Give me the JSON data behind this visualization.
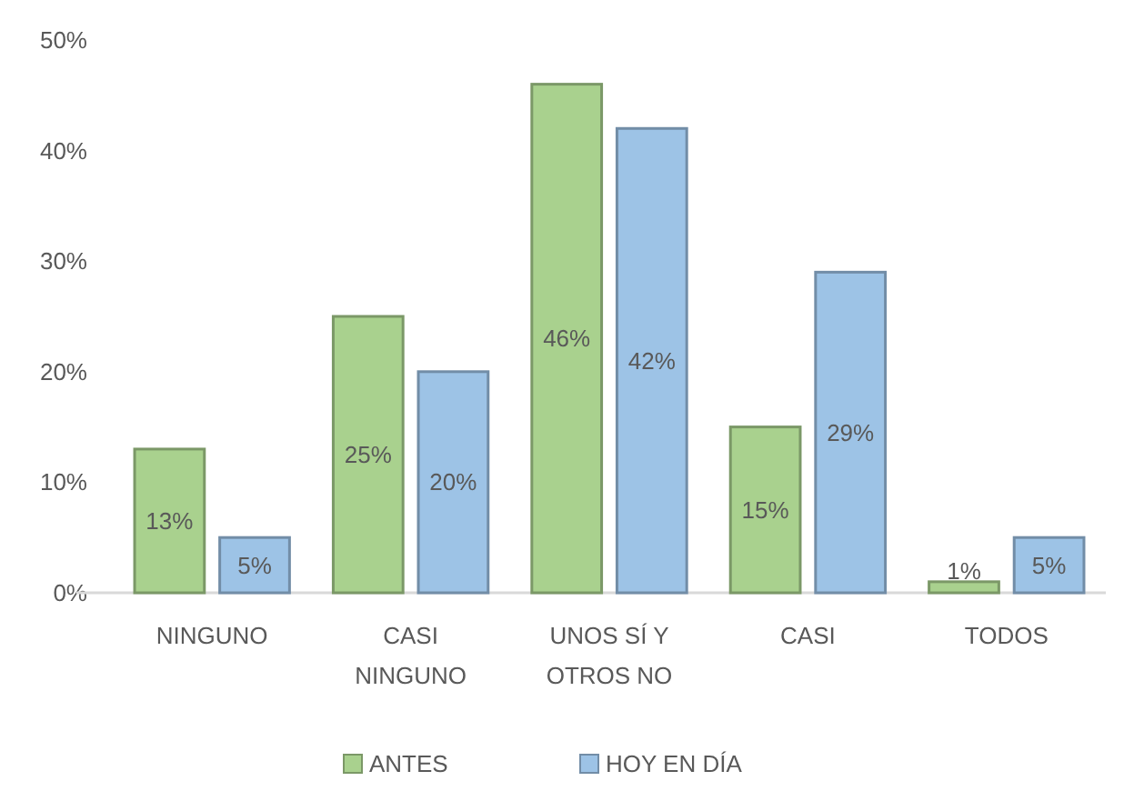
{
  "chart_data": {
    "type": "bar",
    "categories": [
      "NINGUNO",
      "CASI NINGUNO",
      "UNOS SÍ Y OTROS NO",
      "CASI",
      "TODOS"
    ],
    "series": [
      {
        "name": "ANTES",
        "color": "#a9d18e",
        "values": [
          13,
          25,
          46,
          15,
          1
        ],
        "value_labels": [
          "13%",
          "25%",
          "46%",
          "15%",
          "1%"
        ]
      },
      {
        "name": "HOY EN DÍA",
        "color": "#9dc3e6",
        "values": [
          5,
          20,
          42,
          29,
          5
        ],
        "value_labels": [
          "5%",
          "20%",
          "42%",
          "29%",
          "5%"
        ]
      }
    ],
    "ylim": [
      0,
      50
    ],
    "yticks": [
      {
        "value": 0,
        "label": "0%"
      },
      {
        "value": 10,
        "label": "10%"
      },
      {
        "value": 20,
        "label": "20%"
      },
      {
        "value": 30,
        "label": "30%"
      },
      {
        "value": 40,
        "label": "40%"
      },
      {
        "value": 50,
        "label": "50%"
      }
    ],
    "grid": false,
    "legend": "bottom"
  }
}
